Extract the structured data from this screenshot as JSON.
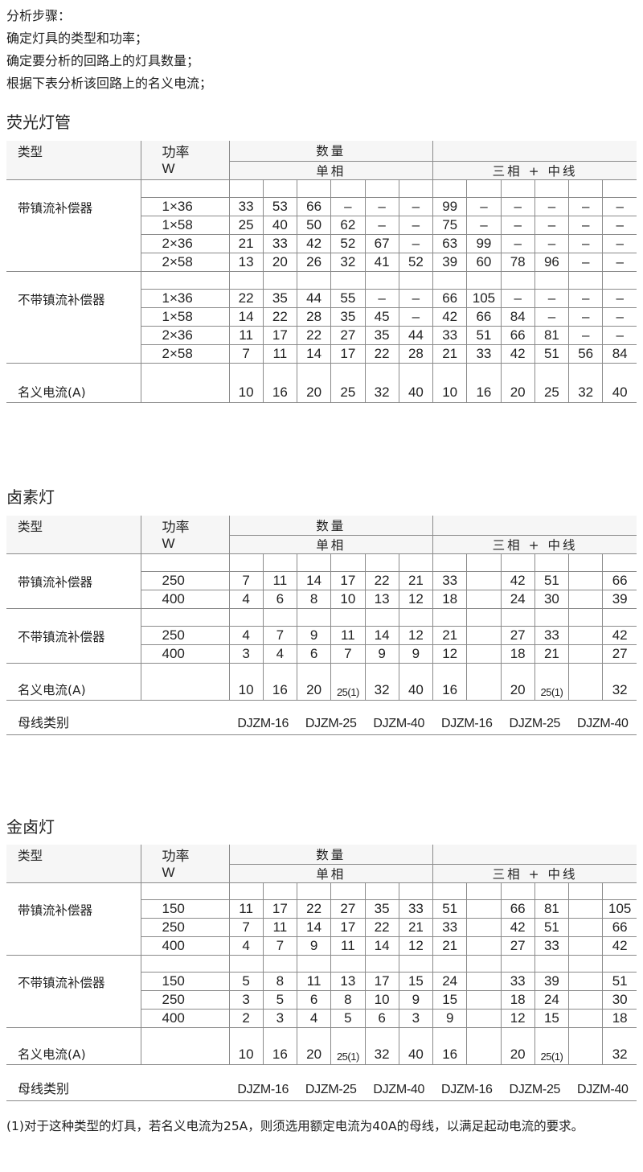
{
  "intro": [
    "分析步骤：",
    "确定灯具的类型和功率；",
    "确定要分析的回路上的灯具数量；",
    "根据下表分析该回路上的名义电流；"
  ],
  "header": {
    "type": "类型",
    "power": "功率",
    "power_unit": "W",
    "quantity": "数量",
    "single_phase": "单相",
    "three_phase": "三相 + 中线"
  },
  "tables": [
    {
      "title": "荧光灯管",
      "groups": [
        {
          "type": "带镇流补偿器",
          "rows": [
            {
              "power": "1×36",
              "values": [
                "33",
                "53",
                "66",
                "–",
                "–",
                "–",
                "99",
                "–",
                "–",
                "–",
                "–",
                "–"
              ]
            },
            {
              "power": "1×58",
              "values": [
                "25",
                "40",
                "50",
                "62",
                "–",
                "–",
                "75",
                "–",
                "–",
                "–",
                "–",
                "–"
              ]
            },
            {
              "power": "2×36",
              "values": [
                "21",
                "33",
                "42",
                "52",
                "67",
                "–",
                "63",
                "99",
                "–",
                "–",
                "–",
                "–"
              ]
            },
            {
              "power": "2×58",
              "values": [
                "13",
                "20",
                "26",
                "32",
                "41",
                "52",
                "39",
                "60",
                "78",
                "96",
                "–",
                "–"
              ]
            }
          ]
        },
        {
          "type": "不带镇流补偿器",
          "rows": [
            {
              "power": "1×36",
              "values": [
                "22",
                "35",
                "44",
                "55",
                "–",
                "–",
                "66",
                "105",
                "–",
                "–",
                "–",
                "–"
              ]
            },
            {
              "power": "1×58",
              "values": [
                "14",
                "22",
                "28",
                "35",
                "45",
                "–",
                "42",
                "66",
                "84",
                "–",
                "–",
                "–"
              ]
            },
            {
              "power": "2×36",
              "values": [
                "11",
                "17",
                "22",
                "27",
                "35",
                "44",
                "33",
                "51",
                "66",
                "81",
                "–",
                "–"
              ]
            },
            {
              "power": "2×58",
              "values": [
                "7",
                "11",
                "14",
                "17",
                "22",
                "28",
                "21",
                "33",
                "42",
                "51",
                "56",
                "84"
              ]
            }
          ]
        }
      ],
      "current_label": "名义电流(A)",
      "current_values": [
        "10",
        "16",
        "20",
        "25",
        "32",
        "40",
        "10",
        "16",
        "20",
        "25",
        "32",
        "40"
      ]
    },
    {
      "title": "卤素灯",
      "groups": [
        {
          "type": "带镇流补偿器",
          "rows": [
            {
              "power": "250",
              "values": [
                "7",
                "11",
                "14",
                "17",
                "22",
                "21",
                "33",
                "",
                "42",
                "51",
                "",
                "66"
              ]
            },
            {
              "power": "400",
              "values": [
                "4",
                "6",
                "8",
                "10",
                "13",
                "12",
                "18",
                "",
                "24",
                "30",
                "",
                "39"
              ]
            }
          ]
        },
        {
          "type": "不带镇流补偿器",
          "rows": [
            {
              "power": "250",
              "values": [
                "4",
                "7",
                "9",
                "11",
                "14",
                "12",
                "21",
                "",
                "27",
                "33",
                "",
                "42"
              ]
            },
            {
              "power": "400",
              "values": [
                "3",
                "4",
                "6",
                "7",
                "9",
                "9",
                "12",
                "",
                "18",
                "21",
                "",
                "27"
              ]
            }
          ]
        }
      ],
      "current_label": "名义电流(A)",
      "current_values": [
        "10",
        "16",
        "20",
        "25(1)",
        "32",
        "40",
        "16",
        "",
        "20",
        "25(1)",
        "",
        "32"
      ],
      "busbar_label": "母线类别",
      "busbar_values": [
        "DJZM-16",
        "DJZM-25",
        "DJZM-40",
        "DJZM-16",
        "DJZM-25",
        "DJZM-40"
      ]
    },
    {
      "title": "金卤灯",
      "groups": [
        {
          "type": "带镇流补偿器",
          "rows": [
            {
              "power": "150",
              "values": [
                "11",
                "17",
                "22",
                "27",
                "35",
                "33",
                "51",
                "",
                "66",
                "81",
                "",
                "105"
              ]
            },
            {
              "power": "250",
              "values": [
                "7",
                "11",
                "14",
                "17",
                "22",
                "21",
                "33",
                "",
                "42",
                "51",
                "",
                "66"
              ]
            },
            {
              "power": "400",
              "values": [
                "4",
                "7",
                "9",
                "11",
                "14",
                "12",
                "21",
                "",
                "27",
                "33",
                "",
                "42"
              ]
            }
          ]
        },
        {
          "type": "不带镇流补偿器",
          "rows": [
            {
              "power": "150",
              "values": [
                "5",
                "8",
                "11",
                "13",
                "17",
                "15",
                "24",
                "",
                "33",
                "39",
                "",
                "51"
              ]
            },
            {
              "power": "250",
              "values": [
                "3",
                "5",
                "6",
                "8",
                "10",
                "9",
                "15",
                "",
                "18",
                "24",
                "",
                "30"
              ]
            },
            {
              "power": "400",
              "values": [
                "2",
                "3",
                "4",
                "5",
                "6",
                "3",
                "9",
                "",
                "12",
                "15",
                "",
                "18"
              ]
            }
          ]
        }
      ],
      "current_label": "名义电流(A)",
      "current_values": [
        "10",
        "16",
        "20",
        "25(1)",
        "32",
        "40",
        "16",
        "",
        "20",
        "25(1)",
        "",
        "32"
      ],
      "busbar_label": "母线类别",
      "busbar_values": [
        "DJZM-16",
        "DJZM-25",
        "DJZM-40",
        "DJZM-16",
        "DJZM-25",
        "DJZM-40"
      ]
    }
  ],
  "footnote": "(1)对于这种类型的灯具，若名义电流为25A，则须选用额定电流为40A的母线，以满足起动电流的要求。"
}
